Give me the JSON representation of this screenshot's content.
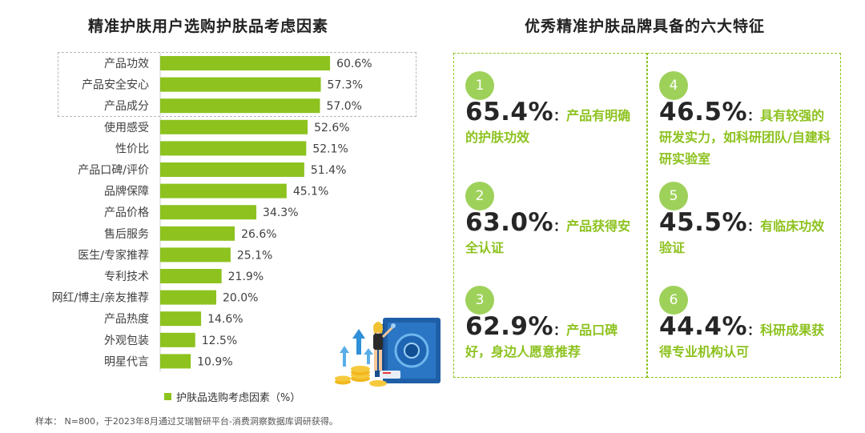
{
  "left_title": "精准护肤用户选购护肤品考虑因素",
  "right_title": "优秀精准护肤品牌具备的六大特征",
  "legend_label": "护肤品选购考虑因素（%）",
  "footnote": "样本： N=800，于2023年8月通过艾瑞智研平台-消费洞察数据库调研获得。",
  "colors": {
    "bar": "#8dc21f",
    "accent": "#8dc21f",
    "circle": "#9ed15a"
  },
  "chart_data": {
    "type": "bar",
    "orientation": "horizontal",
    "title": "精准护肤用户选购护肤品考虑因素",
    "categories": [
      "产品功效",
      "产品安全安心",
      "产品成分",
      "使用感受",
      "性价比",
      "产品口碑/评价",
      "品牌保障",
      "产品价格",
      "售后服务",
      "医生/专家推荐",
      "专利技术",
      "网红/博主/亲友推荐",
      "产品热度",
      "外观包装",
      "明星代言"
    ],
    "series": [
      {
        "name": "护肤品选购考虑因素（%）",
        "values": [
          60.6,
          57.3,
          57.0,
          52.6,
          52.1,
          51.4,
          45.1,
          34.3,
          26.6,
          25.1,
          21.9,
          20.0,
          14.6,
          12.5,
          10.9
        ]
      }
    ],
    "value_labels": [
      "60.6%",
      "57.3%",
      "57.0%",
      "52.6%",
      "52.1%",
      "51.4%",
      "45.1%",
      "34.3%",
      "26.6%",
      "25.1%",
      "21.9%",
      "20.0%",
      "14.6%",
      "12.5%",
      "10.9%"
    ],
    "highlighted": [
      "产品功效",
      "产品安全安心",
      "产品成分"
    ],
    "xlim": [
      0,
      70
    ],
    "grid": false
  },
  "features": [
    {
      "num": "1",
      "pct": "65.4%",
      "colon": "：",
      "text": "产品有明确的护肤功效"
    },
    {
      "num": "2",
      "pct": "63.0%",
      "colon": "：",
      "text": "产品获得安全认证"
    },
    {
      "num": "3",
      "pct": "62.9%",
      "colon": "：",
      "text": "产品口碑好，身边人愿意推荐"
    },
    {
      "num": "4",
      "pct": "46.5%",
      "colon": "：",
      "text": "具有较强的研发实力，如科研团队/自建科研实验室"
    },
    {
      "num": "5",
      "pct": "45.5%",
      "colon": "：",
      "text": "有临床功效验证"
    },
    {
      "num": "6",
      "pct": "44.4%",
      "colon": "：",
      "text": "科研成果获得专业机构认可"
    }
  ]
}
